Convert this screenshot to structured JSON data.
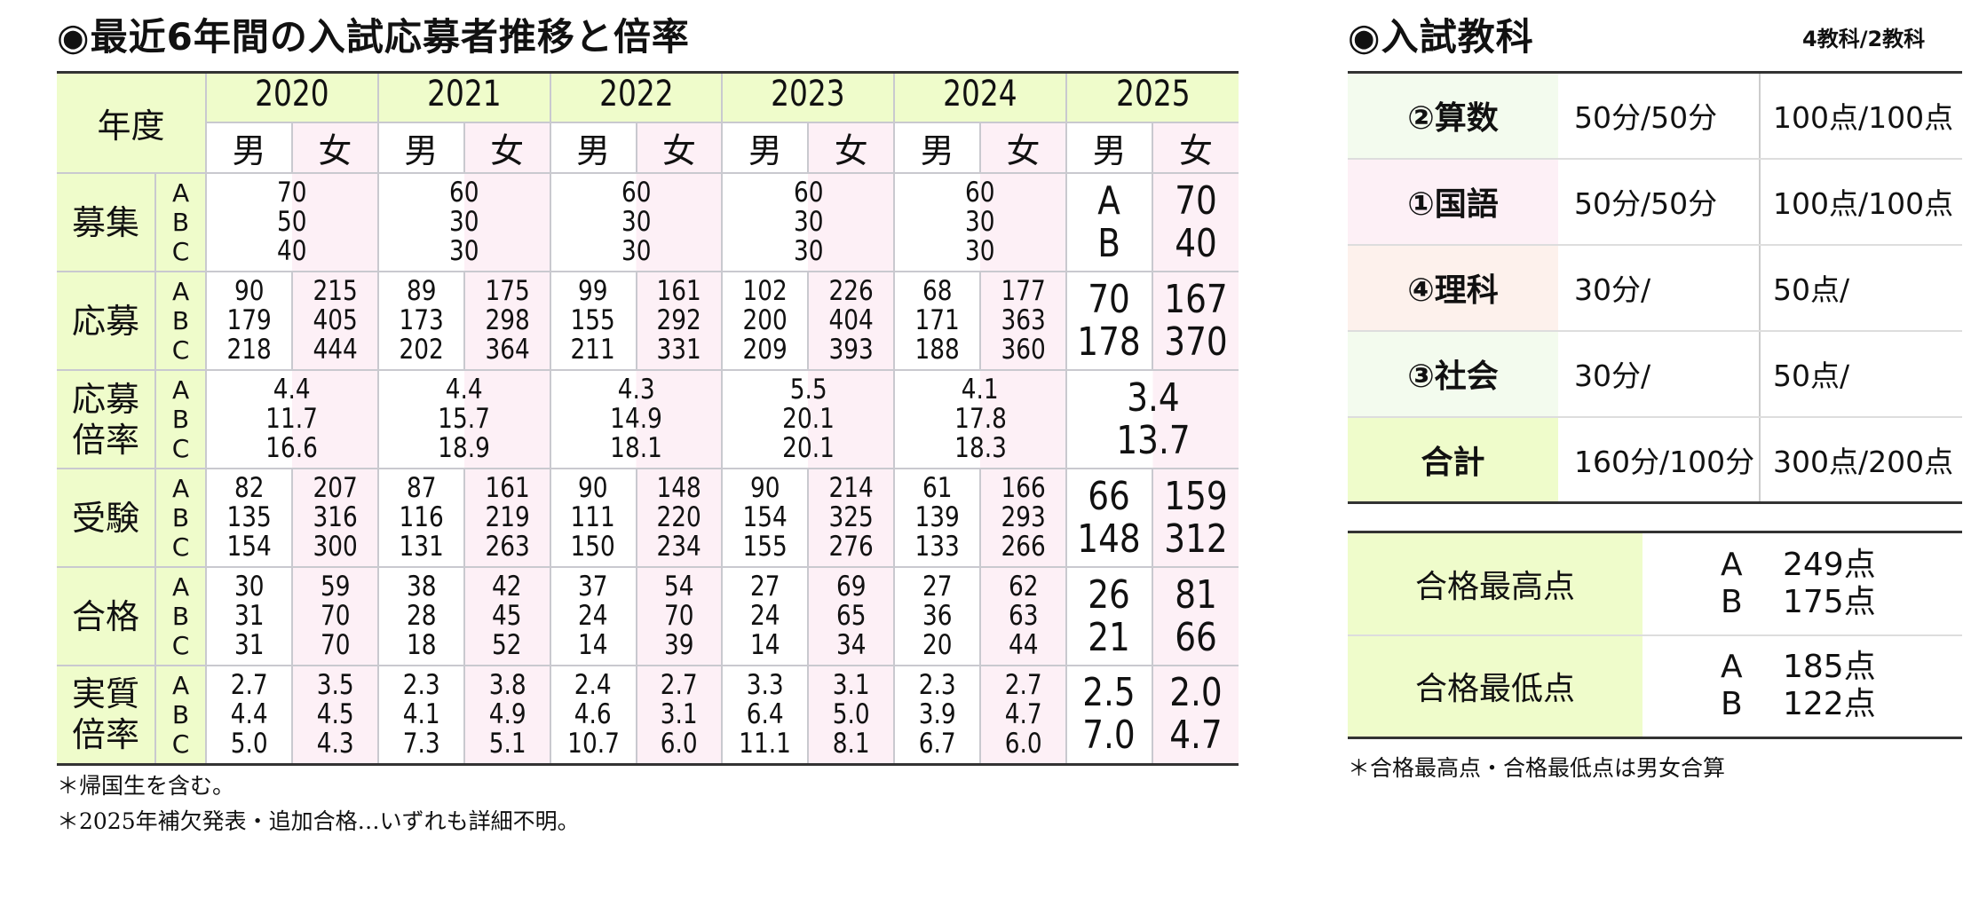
{
  "left_title": "◉最近6年間の入試応募者推移と倍率",
  "table": {
    "year_header": "年度",
    "years": [
      "2020",
      "2021",
      "2022",
      "2023",
      "2024",
      "2025"
    ],
    "male": "男",
    "female": "女",
    "abc": [
      "A",
      "B",
      "C"
    ],
    "rows": [
      {
        "label": [
          "募集"
        ],
        "cells": [
          {
            "merged": [
              "70",
              "50",
              "40"
            ]
          },
          {
            "merged": [
              "60",
              "30",
              "30"
            ]
          },
          {
            "merged": [
              "60",
              "30",
              "30"
            ]
          },
          {
            "merged": [
              "60",
              "30",
              "30"
            ]
          },
          {
            "merged": [
              "60",
              "30",
              "30"
            ]
          },
          {
            "m": [
              "A",
              "B"
            ],
            "f": [
              "70",
              "40"
            ]
          }
        ]
      },
      {
        "label": [
          "応募"
        ],
        "cells": [
          {
            "m": [
              "90",
              "179",
              "218"
            ],
            "f": [
              "215",
              "405",
              "444"
            ]
          },
          {
            "m": [
              "89",
              "173",
              "202"
            ],
            "f": [
              "175",
              "298",
              "364"
            ]
          },
          {
            "m": [
              "99",
              "155",
              "211"
            ],
            "f": [
              "161",
              "292",
              "331"
            ]
          },
          {
            "m": [
              "102",
              "200",
              "209"
            ],
            "f": [
              "226",
              "404",
              "393"
            ]
          },
          {
            "m": [
              "68",
              "171",
              "188"
            ],
            "f": [
              "177",
              "363",
              "360"
            ]
          },
          {
            "m": [
              "70",
              "178"
            ],
            "f": [
              "167",
              "370"
            ]
          }
        ]
      },
      {
        "label": [
          "応募",
          "倍率"
        ],
        "cells": [
          {
            "merged": [
              "4.4",
              "11.7",
              "16.6"
            ]
          },
          {
            "merged": [
              "4.4",
              "15.7",
              "18.9"
            ]
          },
          {
            "merged": [
              "4.3",
              "14.9",
              "18.1"
            ]
          },
          {
            "merged": [
              "5.5",
              "20.1",
              "20.1"
            ]
          },
          {
            "merged": [
              "4.1",
              "17.8",
              "18.3"
            ]
          },
          {
            "merged": [
              "3.4",
              "13.7"
            ]
          }
        ]
      },
      {
        "label": [
          "受験"
        ],
        "cells": [
          {
            "m": [
              "82",
              "135",
              "154"
            ],
            "f": [
              "207",
              "316",
              "300"
            ]
          },
          {
            "m": [
              "87",
              "116",
              "131"
            ],
            "f": [
              "161",
              "219",
              "263"
            ]
          },
          {
            "m": [
              "90",
              "111",
              "150"
            ],
            "f": [
              "148",
              "220",
              "234"
            ]
          },
          {
            "m": [
              "90",
              "154",
              "155"
            ],
            "f": [
              "214",
              "325",
              "276"
            ]
          },
          {
            "m": [
              "61",
              "139",
              "133"
            ],
            "f": [
              "166",
              "293",
              "266"
            ]
          },
          {
            "m": [
              "66",
              "148"
            ],
            "f": [
              "159",
              "312"
            ]
          }
        ]
      },
      {
        "label": [
          "合格"
        ],
        "cells": [
          {
            "m": [
              "30",
              "31",
              "31"
            ],
            "f": [
              "59",
              "70",
              "70"
            ]
          },
          {
            "m": [
              "38",
              "28",
              "18"
            ],
            "f": [
              "42",
              "45",
              "52"
            ]
          },
          {
            "m": [
              "37",
              "24",
              "14"
            ],
            "f": [
              "54",
              "70",
              "39"
            ]
          },
          {
            "m": [
              "27",
              "24",
              "14"
            ],
            "f": [
              "69",
              "65",
              "34"
            ]
          },
          {
            "m": [
              "27",
              "36",
              "20"
            ],
            "f": [
              "62",
              "63",
              "44"
            ]
          },
          {
            "m": [
              "26",
              "21"
            ],
            "f": [
              "81",
              "66"
            ]
          }
        ]
      },
      {
        "label": [
          "実質",
          "倍率"
        ],
        "cells": [
          {
            "m": [
              "2.7",
              "4.4",
              "5.0"
            ],
            "f": [
              "3.5",
              "4.5",
              "4.3"
            ]
          },
          {
            "m": [
              "2.3",
              "4.1",
              "7.3"
            ],
            "f": [
              "3.8",
              "4.9",
              "5.1"
            ]
          },
          {
            "m": [
              "2.4",
              "4.6",
              "10.7"
            ],
            "f": [
              "2.7",
              "3.1",
              "6.0"
            ]
          },
          {
            "m": [
              "3.3",
              "6.4",
              "11.1"
            ],
            "f": [
              "3.1",
              "5.0",
              "8.1"
            ]
          },
          {
            "m": [
              "2.3",
              "3.9",
              "6.7"
            ],
            "f": [
              "2.7",
              "4.7",
              "6.0"
            ]
          },
          {
            "m": [
              "2.5",
              "7.0"
            ],
            "f": [
              "2.0",
              "4.7"
            ]
          }
        ]
      }
    ]
  },
  "footnotes": [
    "＊帰国生を含む。",
    "＊2025年補欠発表・追加合格…いずれも詳細不明。"
  ],
  "right_title": "◉入試教科",
  "right_subtitle": "4教科/2教科",
  "subjects": [
    {
      "name": "②算数",
      "time": "50分/50分",
      "score": "100点/100点",
      "bg": "#f3fbee"
    },
    {
      "name": "①国語",
      "time": "50分/50分",
      "score": "100点/100点",
      "bg": "#fdf0f6"
    },
    {
      "name": "④理科",
      "time": "30分/",
      "score": "50点/",
      "bg": "#fdf1ec"
    },
    {
      "name": "③社会",
      "time": "30分/",
      "score": "50点/",
      "bg": "#f3fbee"
    },
    {
      "name": "合計",
      "time": "160分/100分",
      "score": "300点/200点",
      "bg": "#effccb"
    }
  ],
  "passing": [
    {
      "label": "合格最高点",
      "values": [
        {
          "k": "A",
          "v": "249点"
        },
        {
          "k": "B",
          "v": "175点"
        }
      ]
    },
    {
      "label": "合格最低点",
      "values": [
        {
          "k": "A",
          "v": "185点"
        },
        {
          "k": "B",
          "v": "122点"
        }
      ]
    }
  ],
  "right_footnote": "＊合格最高点・合格最低点は男女合算"
}
